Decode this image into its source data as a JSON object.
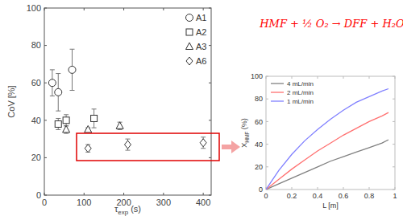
{
  "chart_data": [
    {
      "type": "scatter",
      "xlabel": {
        "text": "τ",
        "sub": "exp",
        "unit": " (s)"
      },
      "ylabel": "CoV [%]",
      "xlim": [
        0,
        420
      ],
      "ylim": [
        0,
        100
      ],
      "xticks": [
        0,
        100,
        200,
        300,
        400
      ],
      "yticks": [
        0,
        20,
        40,
        60,
        80,
        100
      ],
      "grid": false,
      "legend": "upper right",
      "series": [
        {
          "name": "A1",
          "marker": "circle",
          "color": "#333333",
          "x": [
            20,
            35,
            70
          ],
          "values": [
            60,
            55,
            67
          ],
          "errors": [
            7,
            10,
            11
          ]
        },
        {
          "name": "A2",
          "marker": "square",
          "color": "#333333",
          "x": [
            35,
            55,
            125
          ],
          "values": [
            38,
            40,
            41
          ],
          "errors": [
            3,
            3,
            5
          ]
        },
        {
          "name": "A3",
          "marker": "triangle",
          "color": "#333333",
          "x": [
            55,
            110,
            190
          ],
          "values": [
            35,
            35,
            37
          ],
          "errors": [
            2,
            1,
            2
          ]
        },
        {
          "name": "A6",
          "marker": "diamond",
          "color": "#333333",
          "x": [
            110,
            210,
            400
          ],
          "values": [
            25,
            27,
            28
          ],
          "errors": [
            2,
            3,
            3
          ]
        }
      ]
    },
    {
      "type": "line",
      "annotations": [
        {
          "text": "HMF + ½ O₂ → DFF + H₂O",
          "color": "#ff0000"
        }
      ],
      "xlabel": "L [m]",
      "ylabel": {
        "text": "X",
        "sub": "HMF",
        "unit": " (%)"
      },
      "x": [
        0,
        0.1,
        0.2,
        0.3,
        0.4,
        0.5,
        0.6,
        0.7,
        0.8,
        0.9,
        0.95
      ],
      "xlim": [
        0,
        1
      ],
      "ylim": [
        0,
        100
      ],
      "xticks": [
        0,
        0.2,
        0.4,
        0.6,
        0.8,
        1
      ],
      "yticks": [
        0,
        20,
        40,
        60,
        80,
        100
      ],
      "grid": false,
      "legend": "upper left",
      "series": [
        {
          "name": "4 mL/min",
          "color": "#808080",
          "values": [
            0,
            5,
            10,
            15,
            20,
            25,
            29,
            33,
            37,
            41,
            44
          ]
        },
        {
          "name": "2 mL/min",
          "color": "#ff7070",
          "values": [
            0,
            9,
            18,
            26,
            34,
            41,
            48,
            54,
            60,
            65,
            68
          ]
        },
        {
          "name": "1 mL/min",
          "color": "#8080ff",
          "values": [
            0,
            17,
            31,
            43,
            53,
            62,
            70,
            77,
            82,
            87,
            89
          ]
        }
      ]
    }
  ]
}
